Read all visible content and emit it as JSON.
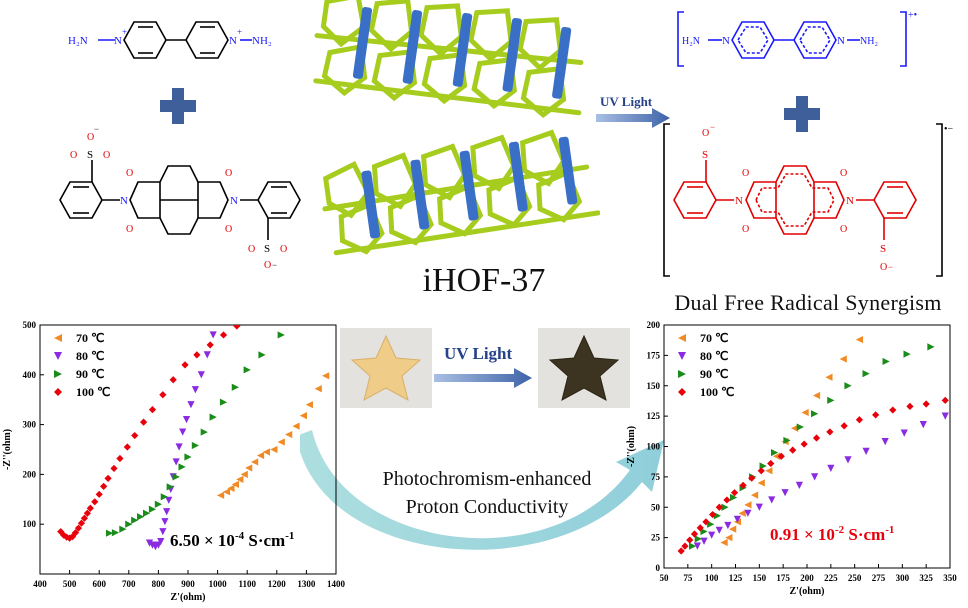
{
  "title_main": "iHOF-37",
  "title_right": "Dual Free Radical Synergism",
  "uv_top": "UV Light",
  "uv_middle": "UV Light",
  "center_caption_line1": "Photochromism-enhanced",
  "center_caption_line2": "Proton Conductivity",
  "molecules": {
    "nh2_left": "H₂N",
    "nh2_right": "NH₂",
    "charge_plus": "+",
    "radical_cation": "+•",
    "radical_anion": "•−",
    "so3_o": "O",
    "so3_s": "S",
    "so3_minus": "−"
  },
  "colors": {
    "series_70": "#f08a24",
    "series_80": "#8a2be2",
    "series_90": "#1a8c1a",
    "series_100": "#e8000b",
    "framework_green": "#a6cc1e",
    "framework_blue": "#3a6fc8",
    "molecule_blue": "#1a1aff",
    "molecule_red": "#e00000",
    "plus_sign": "#3f5f9a",
    "curved_arrow": "#8fd3d3"
  },
  "chart_data": [
    {
      "type": "scatter",
      "title": "",
      "xlabel": "Z'(ohm)",
      "ylabel": "-Z''(ohm)",
      "xlim": [
        400,
        1400
      ],
      "ylim": [
        0,
        500
      ],
      "xticks": [
        400,
        500,
        600,
        700,
        800,
        900,
        1000,
        1100,
        1200,
        1300,
        1400
      ],
      "yticks": [
        100,
        200,
        300,
        400,
        500
      ],
      "legend_position": "top-left",
      "annotation": "6.50 × 10-4 S·cm-1",
      "annotation_parts": [
        "6.50 × 10",
        "-4",
        " S·cm",
        "-1"
      ],
      "series": [
        {
          "name": "70 ℃",
          "marker": "triangle-left",
          "color": "#f08a24",
          "x": [
            1010,
            1030,
            1045,
            1060,
            1075,
            1090,
            1105,
            1125,
            1145,
            1165,
            1190,
            1215,
            1240,
            1265,
            1290,
            1310,
            1340,
            1365
          ],
          "y": [
            158,
            165,
            172,
            180,
            190,
            200,
            213,
            225,
            238,
            245,
            250,
            265,
            280,
            297,
            318,
            340,
            372,
            398
          ]
        },
        {
          "name": "80 ℃",
          "marker": "triangle-down",
          "color": "#8a2be2",
          "x": [
            770,
            780,
            790,
            800,
            808,
            815,
            822,
            828,
            835,
            842,
            850,
            860,
            870,
            882,
            895,
            910,
            925,
            945,
            965,
            985
          ],
          "y": [
            62,
            58,
            55,
            58,
            65,
            85,
            105,
            125,
            148,
            170,
            195,
            225,
            255,
            285,
            310,
            340,
            370,
            400,
            440,
            480
          ]
        },
        {
          "name": "90 ℃",
          "marker": "triangle-right",
          "color": "#1a8c1a",
          "x": [
            635,
            655,
            680,
            700,
            720,
            740,
            760,
            780,
            800,
            820,
            840,
            860,
            880,
            900,
            925,
            955,
            985,
            1020,
            1060,
            1100,
            1150,
            1215
          ],
          "y": [
            82,
            83,
            90,
            100,
            108,
            115,
            122,
            130,
            140,
            155,
            175,
            195,
            215,
            235,
            258,
            285,
            315,
            345,
            375,
            410,
            440,
            480
          ]
        },
        {
          "name": "100 ℃",
          "marker": "diamond",
          "color": "#e8000b",
          "x": [
            470,
            480,
            490,
            500,
            510,
            520,
            530,
            540,
            550,
            560,
            570,
            585,
            600,
            615,
            630,
            650,
            670,
            695,
            720,
            750,
            780,
            815,
            850,
            890,
            930,
            975,
            1020,
            1065
          ],
          "y": [
            85,
            78,
            74,
            72,
            75,
            83,
            92,
            102,
            112,
            122,
            132,
            145,
            160,
            176,
            192,
            212,
            232,
            255,
            278,
            305,
            330,
            360,
            390,
            420,
            440,
            460,
            480,
            498
          ]
        }
      ]
    },
    {
      "type": "scatter",
      "title": "",
      "xlabel": "Z'(ohm)",
      "ylabel": "-Z''(ohm)",
      "xlim": [
        50,
        350
      ],
      "ylim": [
        0,
        200
      ],
      "xticks": [
        50,
        75,
        100,
        125,
        150,
        175,
        200,
        225,
        250,
        275,
        300,
        325,
        350
      ],
      "yticks": [
        0,
        25,
        50,
        75,
        100,
        125,
        150,
        175,
        200
      ],
      "legend_position": "top-left",
      "annotation": "0.91 × 10-2 S·cm-1",
      "annotation_parts": [
        "0.91 × 10",
        "-2",
        " S·cm",
        "-1"
      ],
      "series": [
        {
          "name": "70 ℃",
          "marker": "triangle-left",
          "color": "#f08a24",
          "x": [
            113,
            118,
            122,
            127,
            132,
            138,
            145,
            152,
            160,
            168,
            177,
            187,
            198,
            210,
            223,
            238,
            255
          ],
          "y": [
            21,
            25,
            32,
            38,
            45,
            52,
            60,
            70,
            80,
            92,
            104,
            115,
            128,
            142,
            157,
            172,
            188
          ]
        },
        {
          "name": "80 ℃",
          "marker": "triangle-down",
          "color": "#8a2be2",
          "x": [
            85,
            92,
            100,
            108,
            117,
            127,
            138,
            150,
            163,
            177,
            192,
            208,
            225,
            243,
            262,
            282,
            302,
            322,
            345
          ],
          "y": [
            18,
            22,
            27,
            31,
            35,
            40,
            45,
            50,
            56,
            62,
            68,
            75,
            82,
            89,
            96,
            104,
            111,
            118,
            125
          ]
        },
        {
          "name": "90 ℃",
          "marker": "triangle-right",
          "color": "#1a8c1a",
          "x": [
            80,
            86,
            92,
            99,
            106,
            114,
            123,
            133,
            143,
            154,
            166,
            179,
            193,
            208,
            225,
            243,
            262,
            283,
            305,
            330
          ],
          "y": [
            18,
            24,
            30,
            36,
            43,
            50,
            58,
            66,
            75,
            84,
            95,
            105,
            116,
            127,
            138,
            150,
            160,
            170,
            176,
            182
          ]
        },
        {
          "name": "100 ℃",
          "marker": "diamond",
          "color": "#e8000b",
          "x": [
            68,
            72,
            77,
            82,
            88,
            94,
            101,
            108,
            116,
            124,
            133,
            142,
            152,
            162,
            173,
            185,
            197,
            210,
            224,
            239,
            255,
            272,
            290,
            308,
            325,
            345
          ],
          "y": [
            14,
            18,
            23,
            28,
            33,
            38,
            44,
            50,
            56,
            62,
            68,
            74,
            80,
            86,
            92,
            97,
            102,
            107,
            112,
            117,
            122,
            126,
            130,
            133,
            135,
            138
          ]
        }
      ]
    }
  ]
}
